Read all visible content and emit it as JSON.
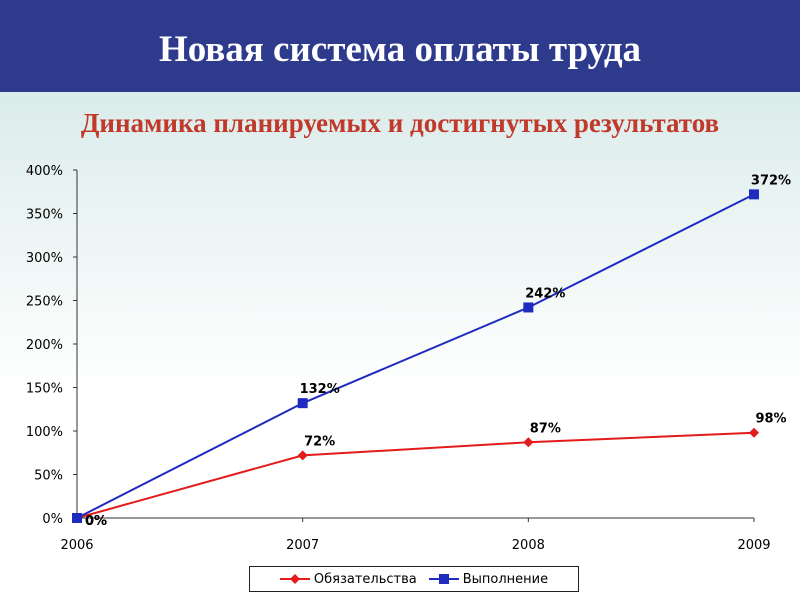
{
  "header": {
    "title": "Новая система оплаты труда"
  },
  "chart_data": {
    "type": "line",
    "title": "Динамика планируемых и достигнутых результатов",
    "categories": [
      "2006",
      "2007",
      "2008",
      "2009"
    ],
    "y_ticks": [
      "0%",
      "50%",
      "100%",
      "150%",
      "200%",
      "250%",
      "300%",
      "350%",
      "400%"
    ],
    "ylim": [
      0,
      400
    ],
    "grid": false,
    "legend_position": "bottom",
    "series": [
      {
        "name": "Обязательства",
        "values": [
          0,
          72,
          87,
          98
        ],
        "labels": [
          "0%",
          "72%",
          "87%",
          "98%"
        ],
        "color": "#e31b1b",
        "marker": "diamond"
      },
      {
        "name": "Выполнение",
        "values": [
          0,
          132,
          242,
          372
        ],
        "labels": [
          "0%",
          "132%",
          "242%",
          "372%"
        ],
        "color": "#1f2bbf",
        "marker": "square"
      }
    ]
  }
}
